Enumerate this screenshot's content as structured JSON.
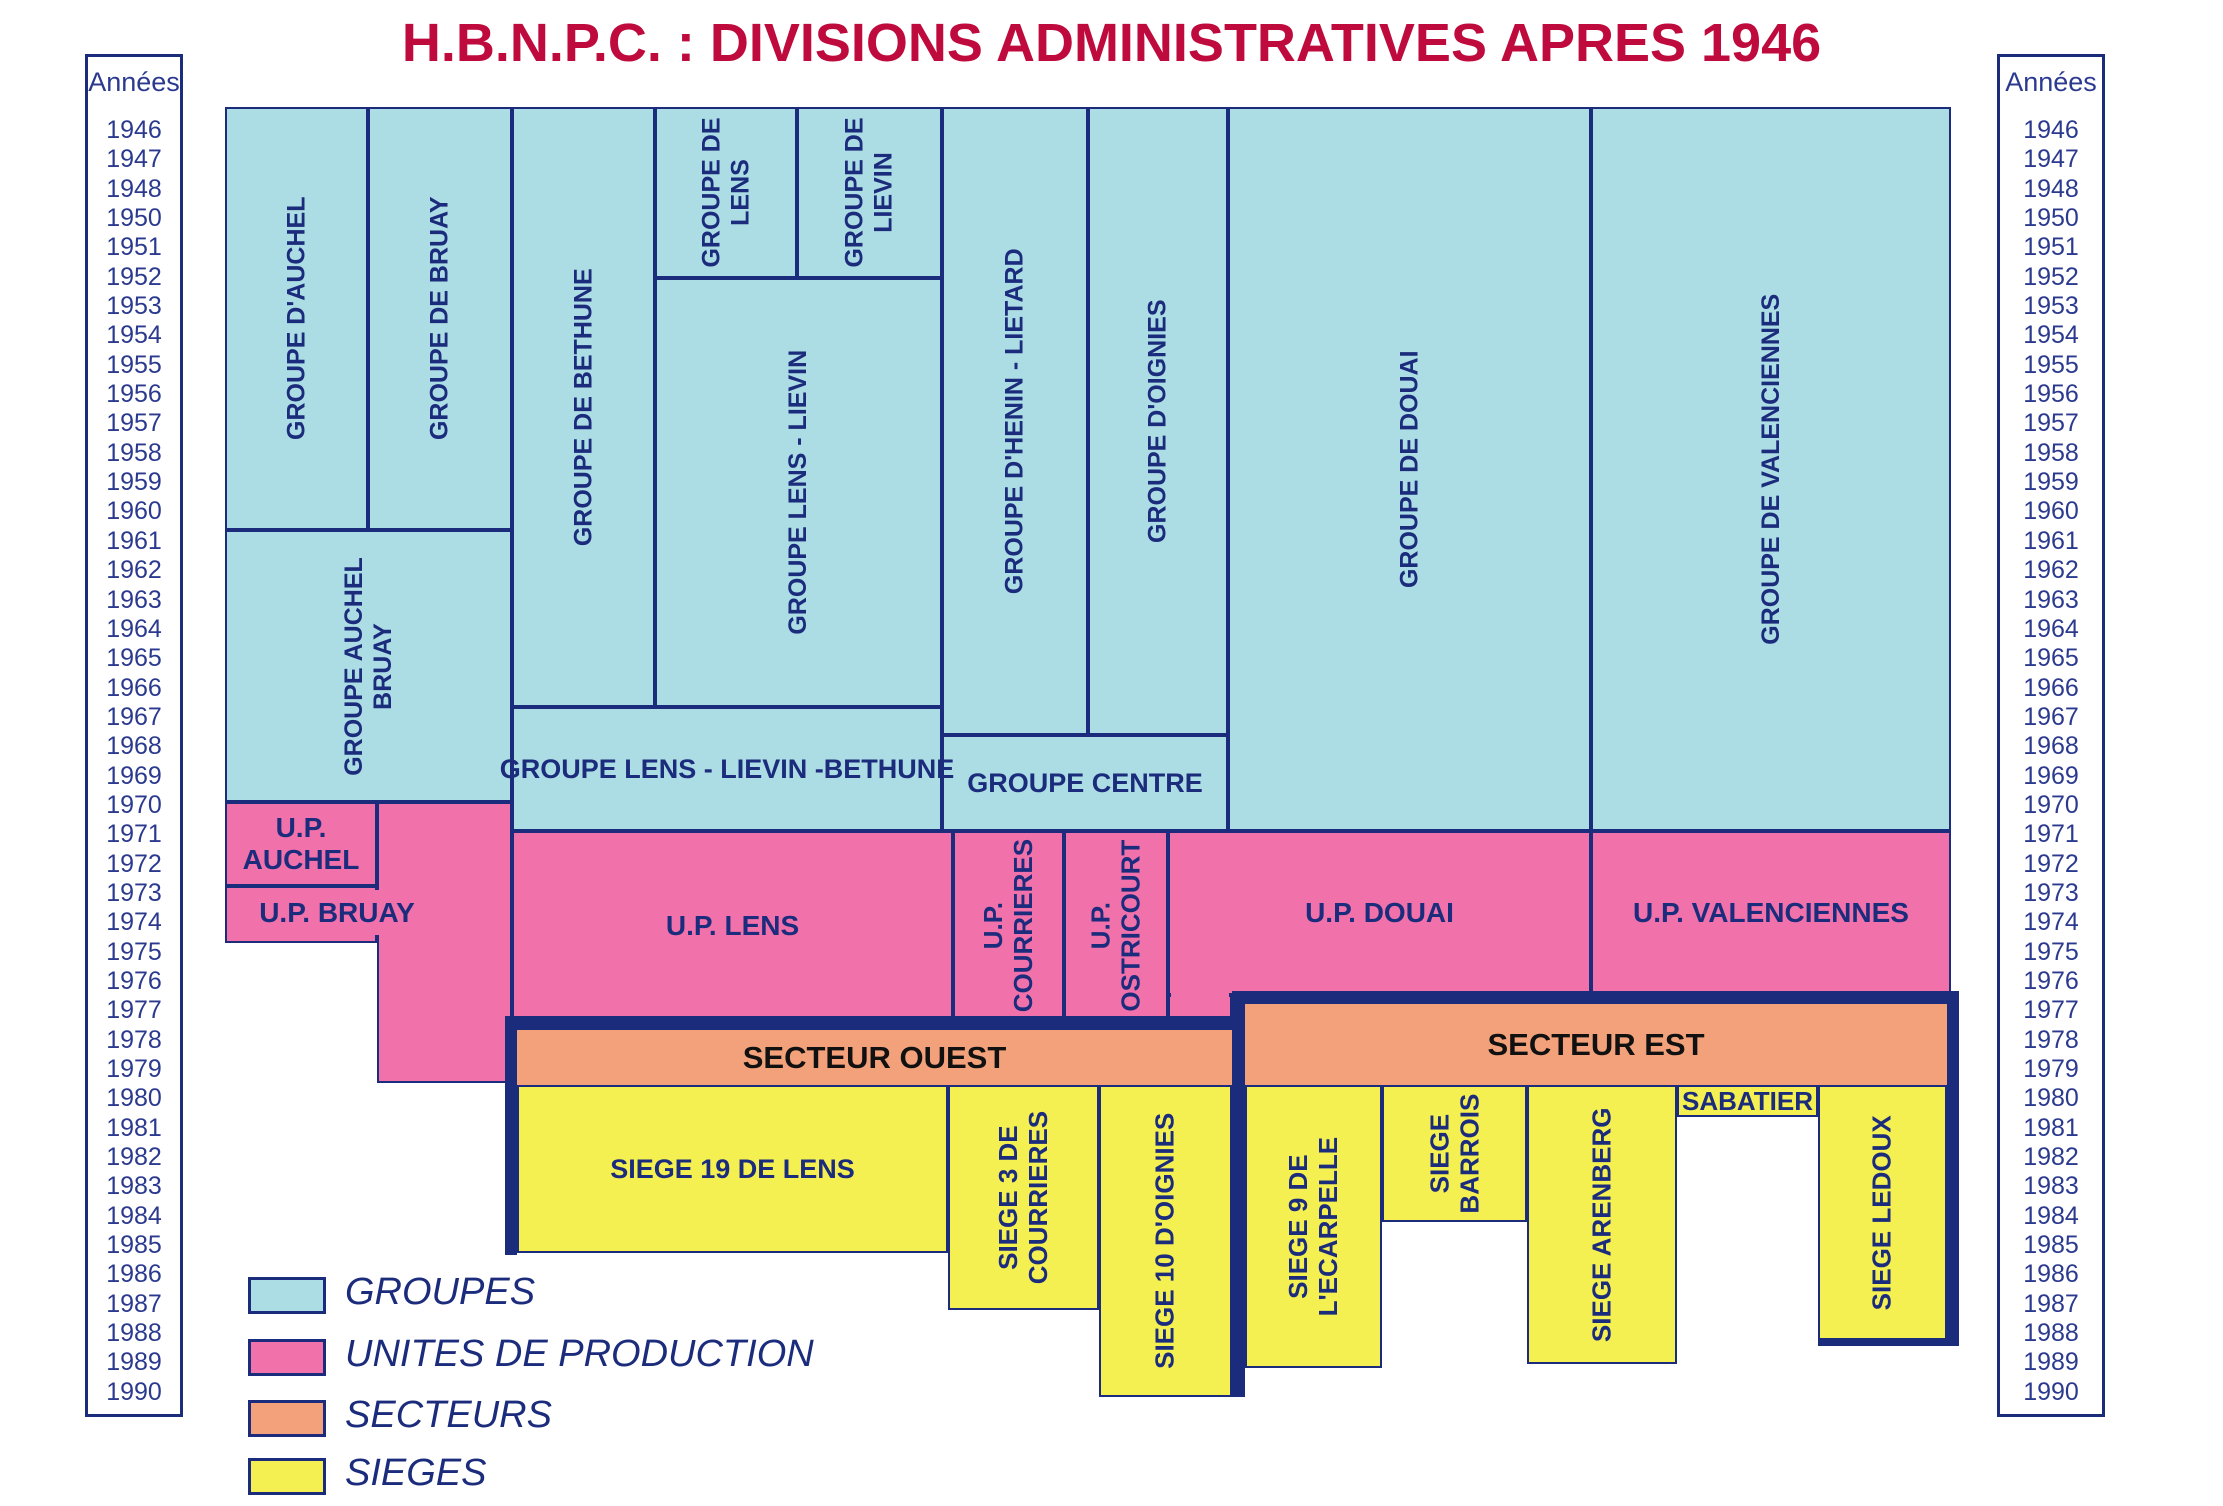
{
  "title": "H.B.N.P.C. : DIVISIONS ADMINISTRATIVES APRES 1946",
  "years_panel": {
    "header": "Années",
    "years": [
      "1946",
      "1947",
      "1948",
      "1950",
      "1951",
      "1952",
      "1953",
      "1954",
      "1955",
      "1956",
      "1957",
      "1958",
      "1959",
      "1960",
      "1961",
      "1962",
      "1963",
      "1964",
      "1965",
      "1966",
      "1967",
      "1968",
      "1969",
      "1970",
      "1971",
      "1972",
      "1973",
      "1974",
      "1975",
      "1976",
      "1977",
      "1978",
      "1979",
      "1980",
      "1981",
      "1982",
      "1983",
      "1984",
      "1985",
      "1986",
      "1987",
      "1988",
      "1989",
      "1990"
    ]
  },
  "colors": {
    "groupe": "#acdce4",
    "unite": "#f171ab",
    "secteur": "#f2a17b",
    "siege": "#f5f052",
    "navy": "#1c2c7c",
    "title": "#be0a3c",
    "year_text": "#2b3a8f",
    "secteur_label": "#111111"
  },
  "blocks": {
    "g_auchel": "GROUPE D'AUCHEL",
    "g_bruay": "GROUPE DE BRUAY",
    "g_auchel_bruay": "GROUPE AUCHEL\nBRUAY",
    "g_bethune": "GROUPE DE BETHUNE",
    "g_lens": "GROUPE DE\nLENS",
    "g_lievin": "GROUPE DE\nLIEVIN",
    "g_lens_lievin": "GROUPE LENS - LIEVIN",
    "g_lens_lievin_bethune": "GROUPE LENS - LIEVIN -BETHUNE",
    "g_henin": "GROUPE D'HENIN - LIETARD",
    "g_oignies": "GROUPE D'OIGNIES",
    "g_centre": "GROUPE CENTRE",
    "g_douai": "GROUPE DE DOUAI",
    "g_valenciennes": "GROUPE DE VALENCIENNES",
    "up_auchel": "U.P.\nAUCHEL",
    "up_bruay": "U.P. BRUAY",
    "up_lens": "U.P. LENS",
    "up_courrieres": "U.P.\nCOURRIERES",
    "up_ostricourt": "U.P.\nOSTRICOURT",
    "up_douai": "U.P. DOUAI",
    "up_valenciennes": "U.P. VALENCIENNES",
    "secteur_ouest": "SECTEUR OUEST",
    "secteur_est": "SECTEUR EST",
    "s_lens19": "SIEGE 19 DE LENS",
    "s_courrieres3": "SIEGE 3 DE\nCOURRIERES",
    "s_oignies10": "SIEGE 10 D'OIGNIES",
    "s_ecarpelle": "SIEGE 9 DE\nL'ECARPELLE",
    "s_barrois": "SIEGE\nBARROIS",
    "s_arenberg": "SIEGE ARENBERG",
    "s_sabatier": "SABATIER",
    "s_ledoux": "SIEGE LEDOUX"
  },
  "legend": {
    "groupes": "GROUPES",
    "unites": "UNITES DE PRODUCTION",
    "secteurs": "SECTEURS",
    "sieges": "SIEGES"
  }
}
